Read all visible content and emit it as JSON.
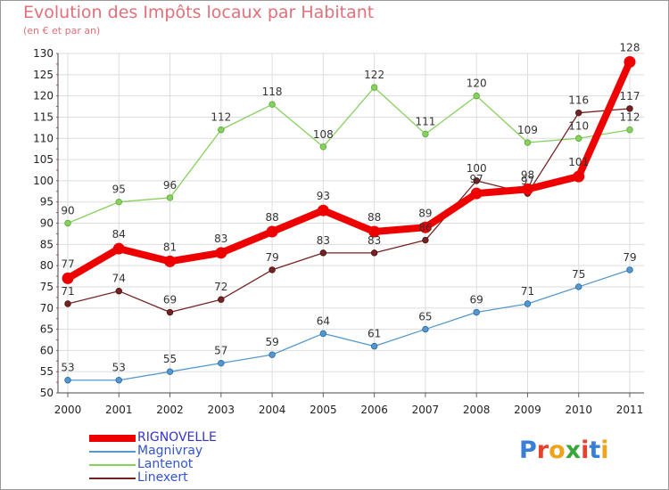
{
  "title": "Evolution des Impôts locaux par Habitant",
  "subtitle": "(en € et par an)",
  "brand": {
    "text": "Proxiti",
    "letters": [
      {
        "ch": "P",
        "color": "#3a7fd6"
      },
      {
        "ch": "r",
        "color": "#e8402a"
      },
      {
        "ch": "o",
        "color": "#f0a21a"
      },
      {
        "ch": "x",
        "color": "#3aa63a"
      },
      {
        "ch": "i",
        "color": "#e8402a"
      },
      {
        "ch": "t",
        "color": "#3a7fd6"
      },
      {
        "ch": "i",
        "color": "#f0a21a"
      }
    ]
  },
  "chart_data": {
    "type": "line",
    "title": "Evolution des Impôts locaux par Habitant",
    "subtitle": "(en € et par an)",
    "xlabel": "",
    "ylabel": "",
    "categories": [
      "2000",
      "2001",
      "2002",
      "2003",
      "2004",
      "2005",
      "2006",
      "2007",
      "2008",
      "2009",
      "2010",
      "2011"
    ],
    "ylim": [
      50,
      130
    ],
    "yticks": [
      50,
      55,
      60,
      65,
      70,
      75,
      80,
      85,
      90,
      95,
      100,
      105,
      110,
      115,
      120,
      125,
      130
    ],
    "grid": true,
    "legend_position": "bottom-left",
    "series": [
      {
        "name": "Lantenot",
        "color": "#88d060",
        "values": [
          90,
          95,
          96,
          112,
          118,
          108,
          122,
          111,
          120,
          109,
          110,
          112
        ]
      },
      {
        "name": "Magnivray",
        "color": "#5599cc",
        "values": [
          53,
          53,
          55,
          57,
          59,
          64,
          61,
          65,
          69,
          71,
          75,
          79
        ]
      },
      {
        "name": "Linexert",
        "color": "#772222",
        "values": [
          71,
          74,
          69,
          72,
          79,
          83,
          83,
          86,
          100,
          97,
          116,
          117
        ]
      },
      {
        "name": "RIGNOVELLE",
        "color": "#ee0000",
        "values": [
          77,
          84,
          81,
          83,
          88,
          93,
          88,
          89,
          97,
          98,
          101,
          128
        ]
      }
    ],
    "legend_order": [
      "RIGNOVELLE",
      "Magnivray",
      "Lantenot",
      "Linexert"
    ]
  }
}
